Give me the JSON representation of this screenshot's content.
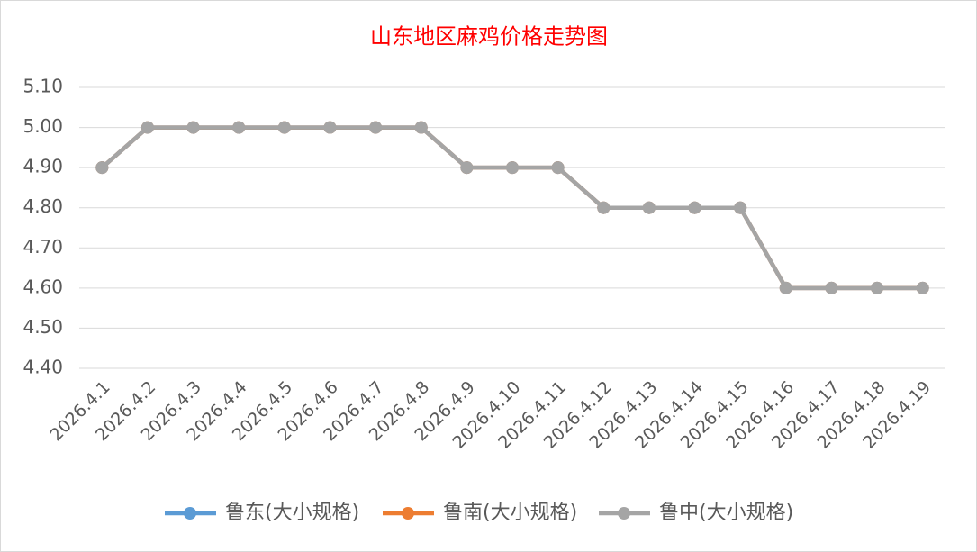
{
  "chart_data": {
    "type": "line",
    "title": "山东地区麻鸡价格走势图",
    "categories": [
      "2026.4.1",
      "2026.4.2",
      "2026.4.3",
      "2026.4.4",
      "2026.4.5",
      "2026.4.6",
      "2026.4.7",
      "2026.4.8",
      "2026.4.9",
      "2026.4.10",
      "2026.4.11",
      "2026.4.12",
      "2026.4.13",
      "2026.4.14",
      "2026.4.15",
      "2026.4.16",
      "2026.4.17",
      "2026.4.18",
      "2026.4.19"
    ],
    "series": [
      {
        "name": "鲁东(大小规格)",
        "color": "#5b9bd5",
        "values": [
          4.9,
          5,
          5,
          5,
          5,
          5,
          5,
          5,
          4.9,
          4.9,
          4.9,
          4.8,
          4.8,
          4.8,
          4.8,
          4.6,
          4.6,
          4.6,
          4.6
        ]
      },
      {
        "name": "鲁南(大小规格)",
        "color": "#ed7d31",
        "values": [
          4.9,
          5,
          5,
          5,
          5,
          5,
          5,
          5,
          4.9,
          4.9,
          4.9,
          4.8,
          4.8,
          4.8,
          4.8,
          4.6,
          4.6,
          4.6,
          4.6
        ]
      },
      {
        "name": "鲁中(大小规格)",
        "color": "#a5a5a5",
        "values": [
          4.9,
          5,
          5,
          5,
          5,
          5,
          5,
          5,
          4.9,
          4.9,
          4.9,
          4.8,
          4.8,
          4.8,
          4.8,
          4.6,
          4.6,
          4.6,
          4.6
        ]
      }
    ],
    "ylim": [
      4.4,
      5.1
    ],
    "yticks": [
      {
        "value": 4.4,
        "label": "4.40"
      },
      {
        "value": 4.5,
        "label": "4.50"
      },
      {
        "value": 4.6,
        "label": "4.60"
      },
      {
        "value": 4.7,
        "label": "4.70"
      },
      {
        "value": 4.8,
        "label": "4.80"
      },
      {
        "value": 4.9,
        "label": "4.90"
      },
      {
        "value": 5.0,
        "label": "5.00"
      },
      {
        "value": 5.1,
        "label": "5.10"
      }
    ],
    "grid": true,
    "legend": "bottom"
  }
}
